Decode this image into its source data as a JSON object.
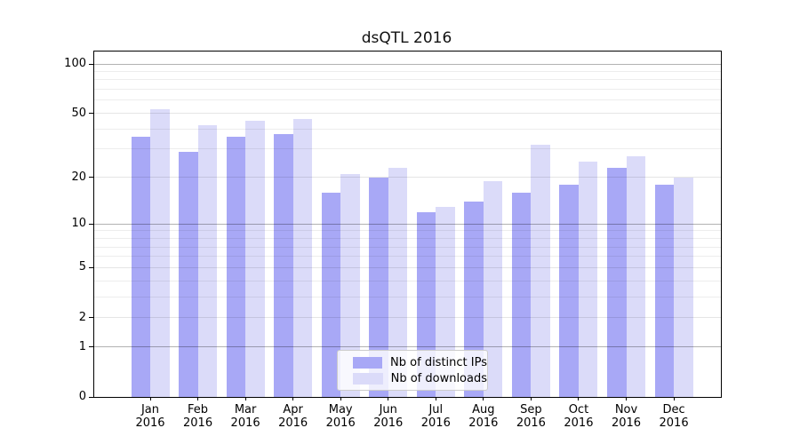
{
  "page_title": "dsQTL 2016",
  "chart_data": {
    "type": "bar",
    "title": "dsQTL 2016",
    "categories": [
      "Jan 2016",
      "Feb 2016",
      "Mar 2016",
      "Apr 2016",
      "May 2016",
      "Jun 2016",
      "Jul 2016",
      "Aug 2016",
      "Sep 2016",
      "Oct 2016",
      "Nov 2016",
      "Dec 2016"
    ],
    "series": [
      {
        "key": "distinct-ips",
        "name": "Nb of distinct IPs",
        "color": "#a8a8f6",
        "values": [
          36,
          29,
          36,
          37,
          16,
          20,
          12,
          14,
          16,
          18,
          23,
          18
        ]
      },
      {
        "key": "downloads",
        "name": "Nb of downloads",
        "color": "#dbdbf9",
        "values": [
          53,
          42,
          45,
          46,
          21,
          23,
          13,
          19,
          32,
          25,
          27,
          20
        ]
      }
    ],
    "xlabel": "",
    "ylabel": "",
    "yaxis": {
      "scale": "log1p",
      "tick_labels": [
        "0",
        "1",
        "2",
        "5",
        "10",
        "20",
        "50",
        "100"
      ],
      "ticks": [
        0,
        1,
        2,
        5,
        10,
        20,
        50,
        100
      ],
      "minor_ticks": [
        3,
        4,
        6,
        7,
        8,
        9,
        30,
        40,
        60,
        70,
        80,
        90
      ],
      "emphasized_gridlines": [
        1,
        10,
        100
      ],
      "ylim": [
        0,
        120
      ]
    },
    "grid": true,
    "legend_position": "lower center",
    "colors": {
      "grid_major": "#b3b3b3",
      "grid_minor": "#e9e9e9",
      "axis": "#000000"
    }
  }
}
